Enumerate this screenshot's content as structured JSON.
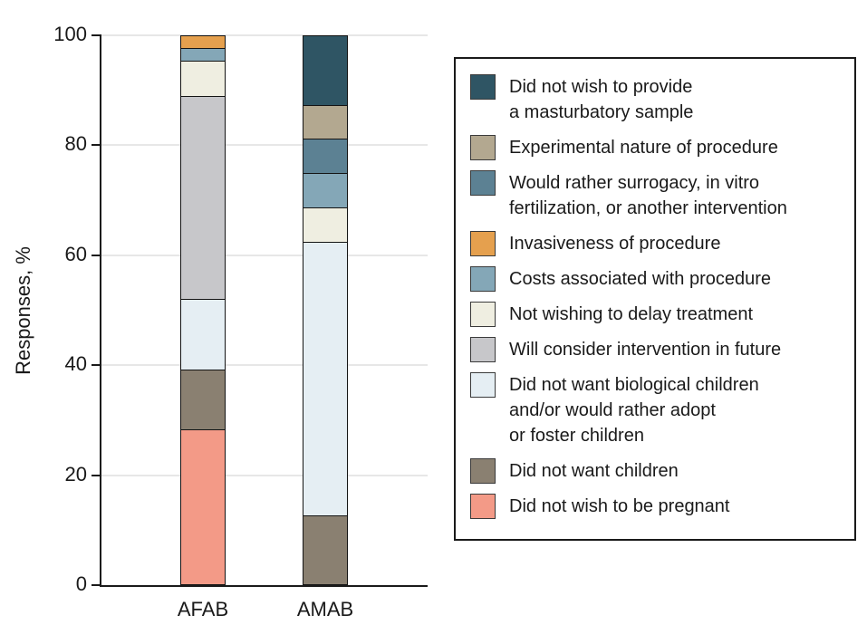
{
  "chart_data": {
    "type": "bar",
    "subtype": "stacked-vertical",
    "title": "",
    "xlabel": "",
    "ylabel": "Responses, %",
    "ylim": [
      0,
      100
    ],
    "yticks": [
      0,
      20,
      40,
      60,
      80,
      100
    ],
    "grid": "horizontal",
    "legend_position": "right",
    "categories": [
      "AFAB",
      "AMAB"
    ],
    "series": [
      {
        "name": "Did not wish to be pregnant",
        "label_lines": [
          "Did not wish to be pregnant"
        ],
        "color": "#F39A87",
        "values": [
          28.3,
          0
        ]
      },
      {
        "name": "Did not want children",
        "label_lines": [
          "Did not want children"
        ],
        "color": "#8A8071",
        "values": [
          10.9,
          12.5
        ]
      },
      {
        "name": "Did not want biological children and/or would rather adopt or foster children",
        "label_lines": [
          "Did not want biological children",
          "and/or would rather adopt",
          "or foster children"
        ],
        "color": "#E5EEF3",
        "values": [
          13.0,
          50.0
        ]
      },
      {
        "name": "Will consider intervention in future",
        "label_lines": [
          "Will consider intervention in future"
        ],
        "color": "#C7C7CA",
        "values": [
          37.0,
          0
        ]
      },
      {
        "name": "Not wishing to delay treatment",
        "label_lines": [
          "Not wishing to delay treatment"
        ],
        "color": "#EFEEE1",
        "values": [
          6.5,
          6.25
        ]
      },
      {
        "name": "Costs associated with procedure",
        "label_lines": [
          "Costs associated with procedure"
        ],
        "color": "#84A7B7",
        "values": [
          2.2,
          6.25
        ]
      },
      {
        "name": "Invasiveness of procedure",
        "label_lines": [
          "Invasiveness of procedure"
        ],
        "color": "#E5A04E",
        "values": [
          2.2,
          0
        ]
      },
      {
        "name": "Would rather surrogacy, in vitro fertilization, or another intervention",
        "label_lines": [
          "Would rather surrogacy, in vitro",
          "fertilization, or another intervention"
        ],
        "color": "#5C8193",
        "values": [
          0,
          6.25
        ]
      },
      {
        "name": "Experimental nature of procedure",
        "label_lines": [
          "Experimental nature of procedure"
        ],
        "color": "#B3A890",
        "values": [
          0,
          6.25
        ]
      },
      {
        "name": "Did not wish to provide a masturbatory sample",
        "label_lines": [
          "Did not wish to provide",
          "a masturbatory sample"
        ],
        "color": "#2F5564",
        "values": [
          0,
          12.5
        ]
      }
    ],
    "colors": {
      "axis": "#1a1a1a",
      "gridline": "#e7e7e7",
      "bar_outline": "#141414",
      "text": "#1a1a1a",
      "background": "#ffffff"
    }
  }
}
